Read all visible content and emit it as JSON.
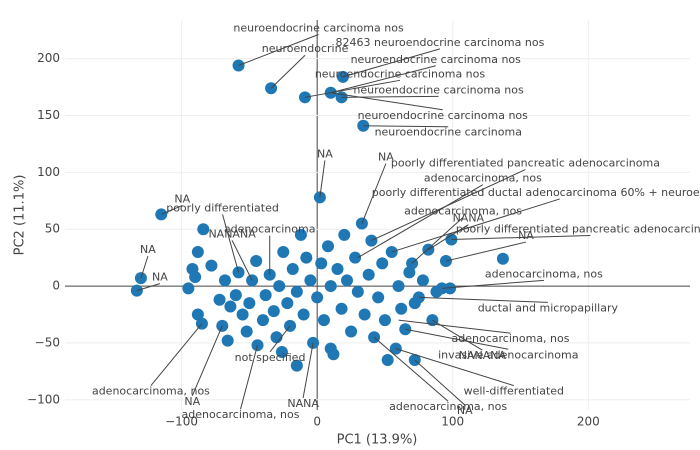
{
  "chart_data": {
    "type": "scatter",
    "xlabel": "PC1 (13.9%)",
    "ylabel": "PC2 (11.1%)",
    "xlim": [
      -186,
      275
    ],
    "ylim": [
      -109,
      234
    ],
    "xticks": [
      {
        "value": -100,
        "label": "−100"
      },
      0,
      100,
      200
    ],
    "yticks": [
      {
        "value": -100,
        "label": "−100"
      },
      {
        "value": -50,
        "label": "−50"
      },
      0,
      50,
      100,
      150,
      200
    ],
    "grid": true,
    "color": "#1f77b4",
    "x": [
      -115,
      -130,
      -133,
      -58,
      -34,
      19,
      10,
      -9,
      18,
      34,
      137,
      99,
      -84,
      -88,
      -90,
      -95,
      -88,
      -85,
      -72,
      -70,
      -66,
      -64,
      -60,
      -58,
      -55,
      -52,
      -50,
      -48,
      -45,
      -44,
      -40,
      -38,
      -35,
      -32,
      -30,
      -28,
      -25,
      -22,
      -20,
      -18,
      -15,
      -12,
      -10,
      -8,
      -5,
      -3,
      0,
      2,
      3,
      5,
      8,
      10,
      12,
      15,
      18,
      20,
      22,
      25,
      28,
      30,
      33,
      35,
      38,
      40,
      42,
      45,
      48,
      50,
      55,
      58,
      60,
      62,
      65,
      68,
      70,
      72,
      75,
      78,
      82,
      85,
      88,
      92,
      95,
      98,
      72,
      -68,
      -78,
      -92,
      -15,
      10,
      -26,
      52
    ],
    "y": [
      63,
      7,
      -4,
      194,
      174,
      184,
      170,
      166,
      166,
      141,
      24,
      41,
      50,
      30,
      8,
      -2,
      -25,
      -33,
      -12,
      -35,
      -48,
      -18,
      -8,
      12,
      -25,
      -40,
      -15,
      5,
      22,
      -52,
      -30,
      -8,
      10,
      -22,
      -45,
      0,
      30,
      -15,
      -35,
      15,
      -5,
      45,
      -25,
      25,
      5,
      -50,
      -10,
      78,
      20,
      -30,
      35,
      0,
      -60,
      15,
      -20,
      45,
      5,
      -40,
      25,
      -5,
      55,
      -25,
      10,
      40,
      -45,
      -10,
      20,
      -30,
      30,
      -55,
      0,
      -20,
      -38,
      12,
      20,
      -15,
      -10,
      5,
      32,
      -30,
      -5,
      -2,
      22,
      -2,
      -65,
      5,
      18,
      15,
      -70,
      -55,
      -58,
      -65
    ],
    "annotations": [
      {
        "text": "neuroendocrine carcinoma nos",
        "x": -58,
        "y": 194
      },
      {
        "text": "neuroendocrine",
        "x": -34,
        "y": 174
      },
      {
        "text": "82463 neuroendocrine carcinoma nos",
        "x": 19,
        "y": 184
      },
      {
        "text": "neuroendocrine carcinoma nos",
        "x": 10,
        "y": 170
      },
      {
        "text": "neuroendocrine carcinoma nos",
        "x": -9,
        "y": 166
      },
      {
        "text": "neuroendocrine carcinoma nos",
        "x": 18,
        "y": 166
      },
      {
        "text": "neuroendocrine carcinoma nos",
        "x": 10,
        "y": 170
      },
      {
        "text": "neuroendocrine carcinoma",
        "x": 34,
        "y": 141
      },
      {
        "text": "poorly differentiated pancreatic adenocarcinoma",
        "x": 40,
        "y": 40
      },
      {
        "text": "adenocarcinoma, nos",
        "x": 30,
        "y": 25
      },
      {
        "text": "poorly differentiated ductal adenocarcinoma 60% + neuroendocrine",
        "x": 55,
        "y": 30
      },
      {
        "text": "adenocarcinoma, nos",
        "x": 70,
        "y": 20
      },
      {
        "text": "poorly differentiated pancreatic adenocarcinoma",
        "x": 99,
        "y": 41
      },
      {
        "text": "adenocarcinoma, nos",
        "x": 92,
        "y": -2
      },
      {
        "text": "ductal and micropapillary",
        "x": 75,
        "y": -10
      },
      {
        "text": "adenocarcinoma, nos",
        "x": 60,
        "y": -30
      },
      {
        "text": "invasive adenocarcinoma",
        "x": 65,
        "y": -38
      },
      {
        "text": "well-differentiated",
        "x": 58,
        "y": -55
      },
      {
        "text": "adenocarcinoma, nos",
        "x": -85,
        "y": -33
      },
      {
        "text": "adenocarcinoma, nos",
        "x": -44,
        "y": -52
      },
      {
        "text": "adenocarcinoma, nos",
        "x": 42,
        "y": -45
      },
      {
        "text": "poorly differentiated",
        "x": -58,
        "y": 12
      },
      {
        "text": "not specified",
        "x": -20,
        "y": -35
      },
      {
        "text": "adenocarcinoma",
        "x": -35,
        "y": 10
      },
      {
        "text": "NA",
        "x": -115,
        "y": 63
      },
      {
        "text": "NA",
        "x": -130,
        "y": 7
      },
      {
        "text": "NA",
        "x": -133,
        "y": -4
      },
      {
        "text": "NA",
        "x": -70,
        "y": -35
      },
      {
        "text": "NA",
        "x": 2,
        "y": 78
      },
      {
        "text": "NA",
        "x": 33,
        "y": 55
      },
      {
        "text": "NA",
        "x": 95,
        "y": 22
      },
      {
        "text": "NANANA",
        "x": -48,
        "y": 5
      },
      {
        "text": "NANA",
        "x": 82,
        "y": 32
      },
      {
        "text": "NANANA",
        "x": 85,
        "y": -30
      },
      {
        "text": "NANA",
        "x": -3,
        "y": -50
      },
      {
        "text": "NA",
        "x": 72,
        "y": -65
      }
    ]
  }
}
